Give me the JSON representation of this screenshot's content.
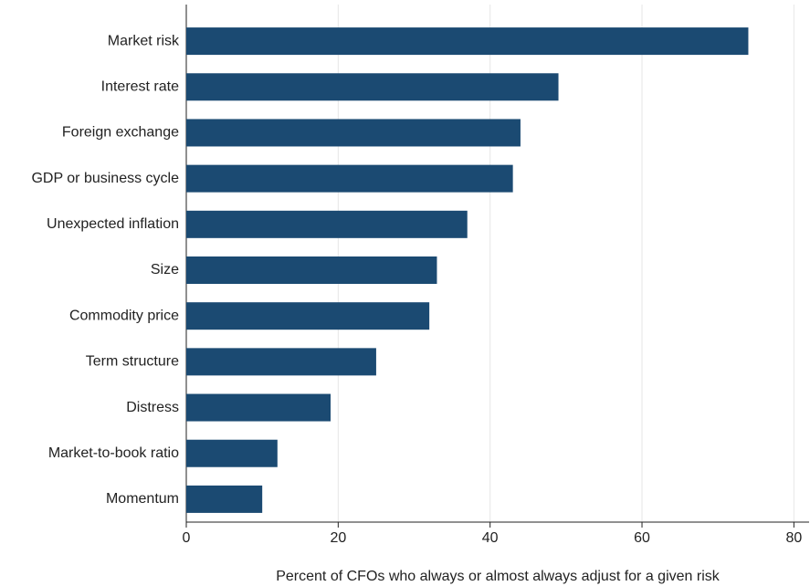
{
  "chart_data": {
    "type": "bar",
    "orientation": "horizontal",
    "xlabel": "Percent of CFOs who always or almost always adjust for a given risk",
    "categories": [
      "Market risk",
      "Interest rate",
      "Foreign exchange",
      "GDP or business cycle",
      "Unexpected inflation",
      "Size",
      "Commodity price",
      "Term structure",
      "Distress",
      "Market-to-book ratio",
      "Momentum"
    ],
    "values": [
      74,
      49,
      44,
      43,
      37,
      33,
      32,
      25,
      19,
      12,
      10
    ],
    "color": "#1b4a72",
    "xlim": [
      0,
      82
    ],
    "xticks": [
      0,
      20,
      40,
      60,
      80
    ],
    "grid": true
  }
}
